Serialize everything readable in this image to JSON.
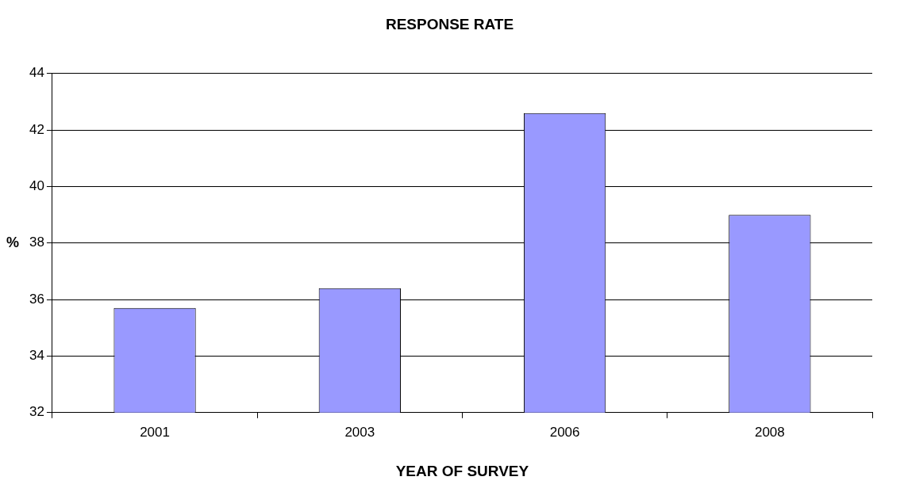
{
  "chart_data": {
    "type": "bar",
    "title": "RESPONSE RATE",
    "xlabel": "YEAR OF SURVEY",
    "ylabel": "%",
    "categories": [
      "2001",
      "2003",
      "2006",
      "2008"
    ],
    "values": [
      35.7,
      36.4,
      42.6,
      39.0
    ],
    "color": "#9999ff",
    "ylim": [
      32,
      44
    ],
    "yticks": [
      32,
      34,
      36,
      38,
      40,
      42,
      44
    ],
    "grid": "y"
  }
}
